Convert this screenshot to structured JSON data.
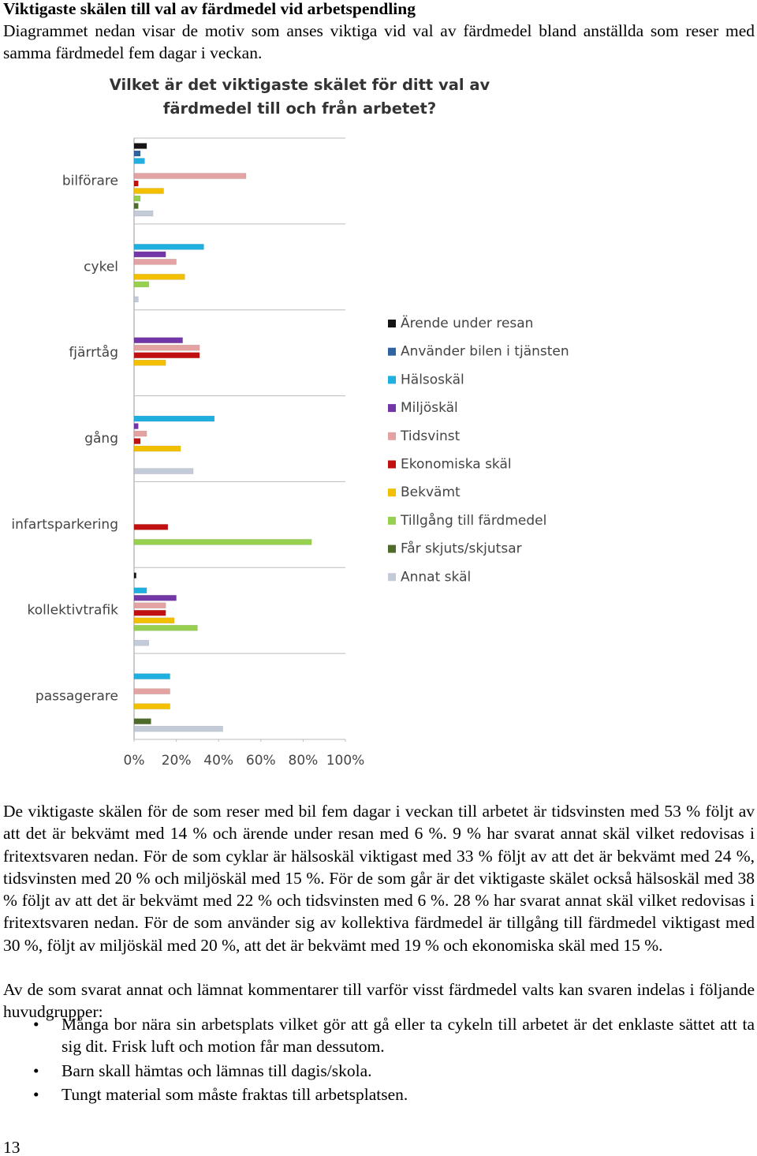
{
  "header": {
    "title": "Viktigaste skälen till val av färdmedel vid arbetspendling",
    "intro": "Diagrammet nedan visar de motiv som anses viktiga vid val av färdmedel bland anställda som reser med samma färdmedel fem dagar i veckan."
  },
  "chart_data": {
    "type": "bar",
    "orientation": "horizontal",
    "title": "Vilket är det viktigaste skälet för ditt val av färdmedel till och från arbetet?",
    "categories": [
      "bilförare",
      "cykel",
      "fjärrtåg",
      "gång",
      "infartsparkering",
      "kollektivtrafik",
      "passagerare"
    ],
    "series": [
      {
        "name": "Ärende under resan",
        "color": "#151515",
        "values": [
          6,
          0,
          0,
          0,
          0,
          1,
          0
        ]
      },
      {
        "name": "Använder bilen i tjänsten",
        "color": "#2e62a0",
        "values": [
          3,
          0,
          0,
          0,
          0,
          0,
          0
        ]
      },
      {
        "name": "Hälsoskäl",
        "color": "#1fb0e0",
        "values": [
          5,
          33,
          0,
          38,
          0,
          6,
          17
        ]
      },
      {
        "name": "Miljöskäl",
        "color": "#7236a6",
        "values": [
          0,
          15,
          23,
          2,
          0,
          20,
          0
        ]
      },
      {
        "name": "Tidsvinst",
        "color": "#e3a3a3",
        "values": [
          53,
          20,
          31,
          6,
          0,
          15,
          17
        ]
      },
      {
        "name": "Ekonomiska skäl",
        "color": "#c21010",
        "values": [
          2,
          0,
          31,
          3,
          16,
          15,
          0
        ]
      },
      {
        "name": "Bekvämt",
        "color": "#f2c000",
        "values": [
          14,
          24,
          15,
          22,
          0,
          19,
          17
        ]
      },
      {
        "name": "Tillgång till färdmedel",
        "color": "#96d04e",
        "values": [
          3,
          7,
          0,
          0,
          84,
          30,
          0
        ]
      },
      {
        "name": "Får skjuts/skjutsar",
        "color": "#4f6b2a",
        "values": [
          2,
          0,
          0,
          0,
          0,
          0,
          8
        ]
      },
      {
        "name": "Annat skäl",
        "color": "#c3cbd9",
        "values": [
          9,
          2,
          0,
          28,
          0,
          7,
          42
        ]
      }
    ],
    "xlim": [
      0,
      100
    ],
    "xticks": [
      {
        "value": 0,
        "label": "0%"
      },
      {
        "value": 20,
        "label": "20%"
      },
      {
        "value": 40,
        "label": "40%"
      },
      {
        "value": 60,
        "label": "60%"
      },
      {
        "value": 80,
        "label": "80%"
      },
      {
        "value": 100,
        "label": "100%"
      }
    ],
    "legend": "right"
  },
  "body": {
    "paragraphs": [
      "De viktigaste skälen för de som reser med bil fem dagar i veckan till arbetet är tidsvinsten med 53 % följt av att det är bekvämt med 14 % och ärende under resan med 6 %. 9 % har svarat annat skäl vilket redovisas i fritextsvaren nedan. För de som cyklar är hälsoskäl viktigast med 33 % följt av att det är bekvämt med 24 %, tidsvinsten med 20 % och miljöskäl med 15 %. För de som går är det viktigaste skälet också hälsoskäl med 38 % följt av att det är bekvämt med 22 % och tidsvinsten med 6 %. 28 % har svarat annat skäl vilket redovisas i fritextsvaren nedan. För de som använder sig av kollektiva färdmedel är tillgång till färdmedel viktigast med 30 %, följt av miljöskäl med 20 %, att det är bekvämt med 19 % och ekonomiska skäl med 15 %.",
      "Av de som svarat annat och lämnat kommentarer till varför visst färdmedel valts kan svaren indelas i följande huvudgrupper:"
    ]
  },
  "list": {
    "items": [
      "Många bor nära sin arbetsplats vilket gör att gå eller ta cykeln till arbetet är det enklaste sättet att ta sig dit. Frisk luft och motion får man dessutom.",
      "Barn skall hämtas och lämnas till dagis/skola.",
      "Tungt material som måste fraktas till arbetsplatsen."
    ]
  },
  "footer": {
    "page_number": "13"
  }
}
